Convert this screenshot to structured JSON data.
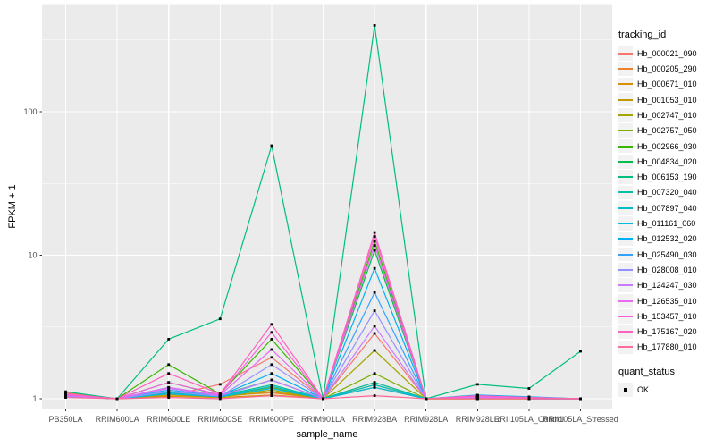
{
  "window": {
    "bg": "#FFFFFF"
  },
  "chart_data": {
    "type": "line",
    "title": "",
    "xlabel": "sample_name",
    "ylabel": "FPKM + 1",
    "y_scale": "log10",
    "y_ticks": [
      1,
      10,
      100
    ],
    "y_minor_ticks": [
      3.1623,
      31.623,
      316.23
    ],
    "ylim": [
      0.85,
      540
    ],
    "grid": "on",
    "panel_bg": "#EBEBEB",
    "grid_color": "#FFFFFF",
    "tick_color": "#333333",
    "tick_label_color": "#4D4D4D",
    "marker": {
      "shape": "square",
      "color": "#000000"
    },
    "x_categories": [
      "PB350LA",
      "RRIM600LA",
      "RRIM600LE",
      "RRIM600SE",
      "RRIM600PE",
      "RRIM901LA",
      "RRIM928BA",
      "RRIM928LA",
      "RRIM928LE",
      "RRII105LA_Control",
      "RRII105LA_Stressed"
    ],
    "legend": {
      "title": "tracking_id",
      "position": "right",
      "key_fill": "#F2F2F2"
    },
    "legend2": {
      "title": "quant_status",
      "items": [
        {
          "label": "OK"
        }
      ]
    },
    "series": [
      {
        "name": "Hb_000021_090",
        "color": "#F8766D",
        "values": [
          1.1,
          1.0,
          1.05,
          1.26,
          1.94,
          1.0,
          2.85,
          1.0,
          1.02,
          1.0,
          1.0
        ]
      },
      {
        "name": "Hb_000205_290",
        "color": "#EA8331",
        "values": [
          1.08,
          1.0,
          1.08,
          1.05,
          1.1,
          1.0,
          1.3,
          1.0,
          1.0,
          1.0,
          1.0
        ]
      },
      {
        "name": "Hb_000671_010",
        "color": "#D89000",
        "values": [
          1.06,
          1.0,
          1.04,
          1.02,
          1.06,
          1.0,
          1.2,
          1.0,
          1.0,
          1.0,
          1.0
        ]
      },
      {
        "name": "Hb_001053_010",
        "color": "#C09B00",
        "values": [
          1.05,
          1.0,
          1.06,
          1.03,
          1.12,
          1.0,
          1.25,
          1.0,
          1.0,
          1.0,
          1.0
        ]
      },
      {
        "name": "Hb_002747_010",
        "color": "#A3A500",
        "values": [
          1.04,
          1.0,
          1.1,
          1.04,
          1.15,
          1.0,
          2.17,
          1.0,
          1.0,
          1.0,
          1.0
        ]
      },
      {
        "name": "Hb_002757_050",
        "color": "#7CAE00",
        "values": [
          1.03,
          1.0,
          1.12,
          1.05,
          1.2,
          1.0,
          1.5,
          1.0,
          1.02,
          1.0,
          1.0
        ]
      },
      {
        "name": "Hb_002966_030",
        "color": "#39B600",
        "values": [
          1.05,
          1.0,
          1.73,
          1.08,
          2.6,
          1.0,
          12.5,
          1.0,
          1.03,
          1.02,
          1.0
        ]
      },
      {
        "name": "Hb_004834_020",
        "color": "#00BB4E",
        "values": [
          1.04,
          1.0,
          1.3,
          1.06,
          1.35,
          1.0,
          10.8,
          1.0,
          1.02,
          1.0,
          1.0
        ]
      },
      {
        "name": "Hb_006153_190",
        "color": "#00BF7D",
        "values": [
          1.12,
          1.0,
          2.6,
          3.6,
          58.0,
          1.0,
          400.0,
          1.0,
          1.26,
          1.18,
          2.14
        ]
      },
      {
        "name": "Hb_007320_040",
        "color": "#00C1A3",
        "values": [
          1.05,
          1.0,
          1.15,
          1.05,
          1.25,
          1.0,
          1.3,
          1.0,
          1.05,
          1.02,
          1.0
        ]
      },
      {
        "name": "Hb_007897_040",
        "color": "#00BFC4",
        "values": [
          1.04,
          1.0,
          1.1,
          1.04,
          1.22,
          1.0,
          1.25,
          1.0,
          1.04,
          1.0,
          1.0
        ]
      },
      {
        "name": "Hb_011161_060",
        "color": "#00BAE0",
        "values": [
          1.03,
          1.0,
          1.08,
          1.03,
          1.18,
          1.0,
          1.2,
          1.0,
          1.03,
          1.0,
          1.0
        ]
      },
      {
        "name": "Hb_012532_020",
        "color": "#00B0F6",
        "values": [
          1.06,
          1.0,
          1.2,
          1.05,
          1.5,
          1.0,
          8.1,
          1.0,
          1.06,
          1.03,
          1.0
        ]
      },
      {
        "name": "Hb_025490_030",
        "color": "#35A2FF",
        "values": [
          1.05,
          1.0,
          1.15,
          1.04,
          1.35,
          1.0,
          5.5,
          1.0,
          1.04,
          1.02,
          1.0
        ]
      },
      {
        "name": "Hb_028008_010",
        "color": "#9590FF",
        "values": [
          1.04,
          1.0,
          1.12,
          1.04,
          1.73,
          1.0,
          4.1,
          1.0,
          1.03,
          1.0,
          1.0
        ]
      },
      {
        "name": "Hb_124247_030",
        "color": "#C77CFF",
        "values": [
          1.05,
          1.0,
          1.18,
          1.05,
          1.35,
          1.0,
          3.2,
          1.0,
          1.02,
          1.0,
          1.0
        ]
      },
      {
        "name": "Hb_126535_010",
        "color": "#E76BF3",
        "values": [
          1.06,
          1.0,
          1.2,
          1.06,
          2.2,
          1.0,
          11.7,
          1.0,
          1.03,
          1.0,
          1.0
        ]
      },
      {
        "name": "Hb_153457_010",
        "color": "#FA62DB",
        "values": [
          1.07,
          1.0,
          1.3,
          1.07,
          2.9,
          1.0,
          13.5,
          1.0,
          1.04,
          1.02,
          1.0
        ]
      },
      {
        "name": "Hb_175167_020",
        "color": "#FF62BC",
        "values": [
          1.08,
          1.0,
          1.5,
          1.08,
          3.3,
          1.0,
          14.4,
          1.0,
          1.05,
          1.02,
          1.0
        ]
      },
      {
        "name": "Hb_177880_010",
        "color": "#FF6A98",
        "values": [
          1.02,
          1.0,
          1.02,
          1.0,
          1.05,
          1.0,
          1.05,
          1.0,
          1.0,
          1.0,
          1.0
        ]
      }
    ]
  }
}
